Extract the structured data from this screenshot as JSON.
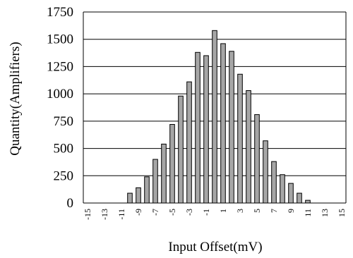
{
  "chart_data": {
    "type": "bar",
    "xlabel": "Input Offset(mV)",
    "ylabel": "Quantity(Amplifiers)",
    "ylim": [
      0,
      1750
    ],
    "yticks": [
      "0",
      "250",
      "500",
      "750",
      "1000",
      "1250",
      "1500",
      "1750"
    ],
    "grid": "horizontal",
    "bar_color": "#a6a6a6",
    "categories": [
      -15,
      -14,
      -13,
      -12,
      -11,
      -10,
      -9,
      -8,
      -7,
      -6,
      -5,
      -4,
      -3,
      -2,
      -1,
      0,
      1,
      2,
      3,
      4,
      5,
      6,
      7,
      8,
      9,
      10,
      11,
      12,
      13,
      14,
      15
    ],
    "xtick_labels": [
      "-15",
      "",
      "-13",
      "",
      "-11",
      "",
      "-9",
      "",
      "-7",
      "",
      "-5",
      "",
      "-3",
      "",
      "-1",
      "",
      "1",
      "",
      "3",
      "",
      "5",
      "",
      "7",
      "",
      "9",
      "",
      "11",
      "",
      "13",
      "",
      "15"
    ],
    "values": [
      0,
      0,
      0,
      0,
      0,
      90,
      140,
      240,
      400,
      540,
      720,
      980,
      1110,
      1380,
      1350,
      1580,
      1460,
      1390,
      1180,
      1030,
      810,
      570,
      380,
      260,
      180,
      90,
      25,
      0,
      0,
      0,
      0
    ]
  }
}
